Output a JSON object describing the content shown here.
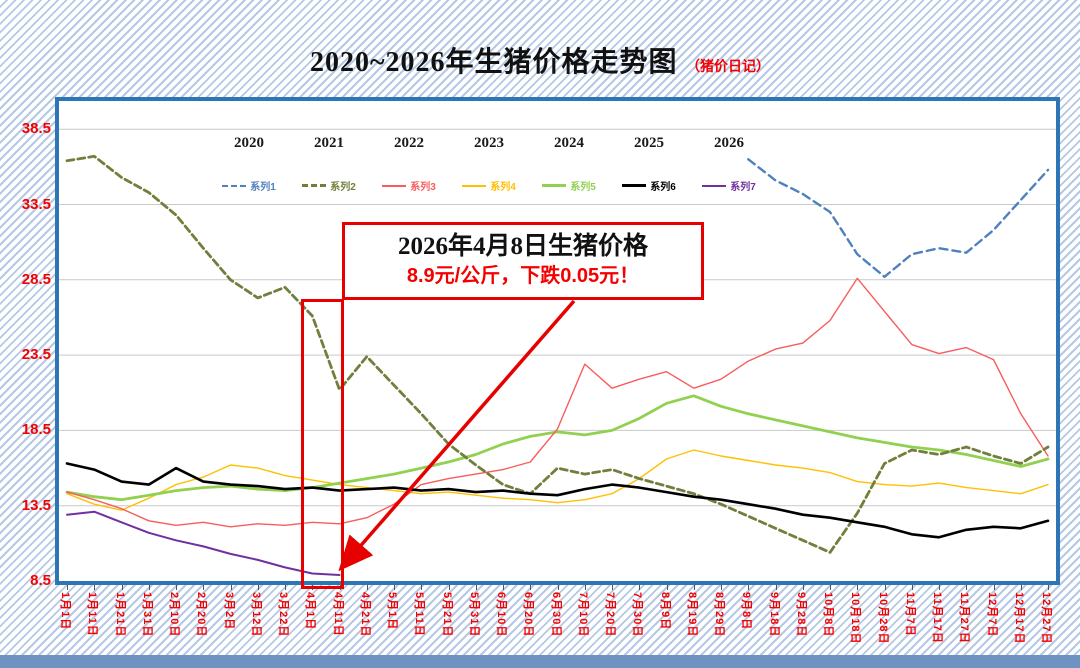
{
  "title": {
    "main": "2020~2026年生猪价格走势图",
    "sub": "（猪价日记）"
  },
  "annotation": {
    "line1": "2026年4月8日生猪价格",
    "line2": "8.9元/公斤，下跌0.05元！"
  },
  "colors": {
    "axis_label": "#f40000",
    "plot_border": "#2e75b6",
    "grid": "#c9c9c9",
    "annotation_red": "#e60000",
    "background_stripe": "#b5c9e6"
  },
  "chart_data": {
    "type": "line",
    "title": "2020~2026年生猪价格走势图（猪价日记）",
    "ylim": [
      8.5,
      40.4
    ],
    "yticks": [
      38.5,
      33.5,
      28.5,
      23.5,
      18.5,
      13.5,
      8.5
    ],
    "grid": "horizontal",
    "legend_position": "top",
    "categories": [
      "1月1日",
      "1月11日",
      "1月21日",
      "1月31日",
      "2月10日",
      "2月20日",
      "3月2日",
      "3月12日",
      "3月22日",
      "4月1日",
      "4月11日",
      "4月21日",
      "5月1日",
      "5月11日",
      "5月21日",
      "5月31日",
      "6月10日",
      "6月20日",
      "6月30日",
      "7月10日",
      "7月20日",
      "7月30日",
      "8月9日",
      "8月19日",
      "8月29日",
      "9月8日",
      "9月18日",
      "9月28日",
      "10月8日",
      "10月18日",
      "10月28日",
      "11月7日",
      "11月17日",
      "11月27日",
      "12月7日",
      "12月17日",
      "12月27日"
    ],
    "series": [
      {
        "name": "系列1",
        "year": "2020",
        "color": "#4f81bd",
        "dash": "8 5",
        "width": 2.4,
        "values": [
          null,
          null,
          null,
          null,
          null,
          null,
          null,
          null,
          null,
          null,
          null,
          null,
          null,
          null,
          null,
          null,
          null,
          null,
          null,
          null,
          null,
          null,
          null,
          null,
          null,
          36.5,
          35.1,
          34.2,
          33.0,
          30.2,
          28.7,
          30.2,
          30.6,
          30.3,
          31.8,
          33.8,
          35.8
        ]
      },
      {
        "name": "系列2",
        "year": "2021",
        "color": "#70803c",
        "dash": "7 4",
        "width": 2.8,
        "values": [
          36.4,
          36.7,
          35.3,
          34.3,
          32.8,
          30.6,
          28.5,
          27.3,
          28.0,
          26.1,
          21.2,
          23.4,
          21.5,
          19.6,
          17.6,
          16.2,
          14.9,
          14.3,
          16.0,
          15.6,
          15.9,
          15.3,
          14.8,
          14.3,
          13.6,
          12.8,
          12.0,
          11.2,
          10.4,
          13.0,
          16.3,
          17.2,
          16.9,
          17.4,
          16.8,
          16.3,
          17.4
        ]
      },
      {
        "name": "系列3",
        "year": "2022",
        "color": "#f75d5d",
        "dash": null,
        "width": 1.4,
        "values": [
          14.4,
          13.9,
          13.3,
          12.5,
          12.2,
          12.4,
          12.1,
          12.3,
          12.2,
          12.4,
          12.3,
          12.7,
          13.6,
          14.9,
          15.3,
          15.6,
          15.9,
          16.4,
          18.6,
          22.9,
          21.3,
          21.9,
          22.4,
          21.3,
          21.9,
          23.1,
          23.9,
          24.3,
          25.8,
          28.6,
          26.4,
          24.2,
          23.6,
          24.0,
          23.2,
          19.6,
          16.8
        ]
      },
      {
        "name": "系列4",
        "year": "2023",
        "color": "#ffc000",
        "dash": null,
        "width": 1.4,
        "values": [
          14.3,
          13.6,
          13.2,
          14.0,
          14.9,
          15.4,
          16.2,
          16.0,
          15.5,
          15.2,
          14.9,
          14.7,
          14.5,
          14.3,
          14.4,
          14.2,
          14.0,
          13.9,
          13.7,
          13.9,
          14.3,
          15.3,
          16.6,
          17.2,
          16.8,
          16.5,
          16.2,
          16.0,
          15.7,
          15.1,
          14.9,
          14.8,
          15.0,
          14.7,
          14.5,
          14.3,
          14.9
        ]
      },
      {
        "name": "系列5",
        "year": "2024",
        "color": "#92d050",
        "dash": null,
        "width": 2.8,
        "values": [
          14.4,
          14.1,
          13.9,
          14.2,
          14.5,
          14.7,
          14.8,
          14.6,
          14.5,
          14.7,
          15.0,
          15.3,
          15.6,
          16.0,
          16.4,
          16.9,
          17.6,
          18.1,
          18.4,
          18.2,
          18.5,
          19.3,
          20.3,
          20.8,
          20.1,
          19.6,
          19.2,
          18.8,
          18.4,
          18.0,
          17.7,
          17.4,
          17.2,
          16.9,
          16.5,
          16.1,
          16.6
        ]
      },
      {
        "name": "系列6",
        "year": "2025",
        "color": "#000000",
        "dash": null,
        "width": 2.6,
        "values": [
          16.3,
          15.9,
          15.1,
          14.9,
          16.0,
          15.1,
          14.9,
          14.8,
          14.6,
          14.7,
          14.5,
          14.6,
          14.7,
          14.5,
          14.6,
          14.4,
          14.5,
          14.3,
          14.2,
          14.6,
          14.9,
          14.7,
          14.4,
          14.1,
          13.9,
          13.6,
          13.3,
          12.9,
          12.7,
          12.4,
          12.1,
          11.6,
          11.4,
          11.9,
          12.1,
          12.0,
          12.5
        ]
      },
      {
        "name": "系列7",
        "year": "2026",
        "color": "#7030a0",
        "dash": null,
        "width": 2.0,
        "values": [
          12.9,
          13.1,
          12.4,
          11.7,
          11.2,
          10.8,
          10.3,
          9.9,
          9.4,
          9.0,
          8.9,
          null,
          null,
          null,
          null,
          null,
          null,
          null,
          null,
          null,
          null,
          null,
          null,
          null,
          null,
          null,
          null,
          null,
          null,
          null,
          null,
          null,
          null,
          null,
          null,
          null,
          null
        ]
      }
    ]
  }
}
